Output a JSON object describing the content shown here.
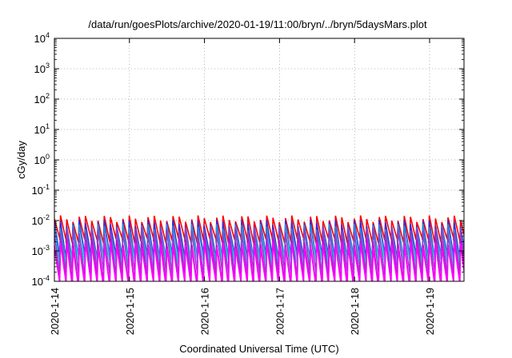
{
  "chart_data": {
    "type": "line",
    "title": "/data/run/goesPlots/archive/2020-01-19/11:00/bryn/../bryn/5daysMars.plot",
    "xlabel": "Coordinated Universal Time (UTC)",
    "ylabel": "cGy/day",
    "yscale": "log",
    "ylim": [
      0.0001,
      10000
    ],
    "xlim": [
      "2020-01-14T00:00",
      "2020-01-19T11:00"
    ],
    "x_ticks": [
      "2020-1-14",
      "2020-1-15",
      "2020-1-16",
      "2020-1-17",
      "2020-1-18",
      "2020-1-19"
    ],
    "y_ticks": [
      {
        "base": "10",
        "exp": "-4"
      },
      {
        "base": "10",
        "exp": "-3"
      },
      {
        "base": "10",
        "exp": "-2"
      },
      {
        "base": "10",
        "exp": "-1"
      },
      {
        "base": "10",
        "exp": "0"
      },
      {
        "base": "10",
        "exp": "1"
      },
      {
        "base": "10",
        "exp": "2"
      },
      {
        "base": "10",
        "exp": "3"
      },
      {
        "base": "10",
        "exp": "4"
      }
    ],
    "grid": true,
    "cycle_days": 0.0833,
    "series": [
      {
        "color": "#ff0000",
        "peak": 0.0118,
        "trough": 0.0022
      },
      {
        "color": "#3a2ad6",
        "peak": 0.0085,
        "trough": 0.00062
      },
      {
        "color": "#2a8ae0",
        "peak": 0.0062,
        "trough": 0.00055
      },
      {
        "color": "#1ed8d8",
        "peak": 0.0032,
        "trough": 0.00042
      },
      {
        "color": "#8844cc",
        "peak": 0.0048,
        "trough": 0.00018
      },
      {
        "color": "#cc00cc",
        "peak": 0.0021,
        "trough": 9e-05
      },
      {
        "color": "#ff00ff",
        "peak": 0.0016,
        "trough": 8e-05
      }
    ]
  }
}
